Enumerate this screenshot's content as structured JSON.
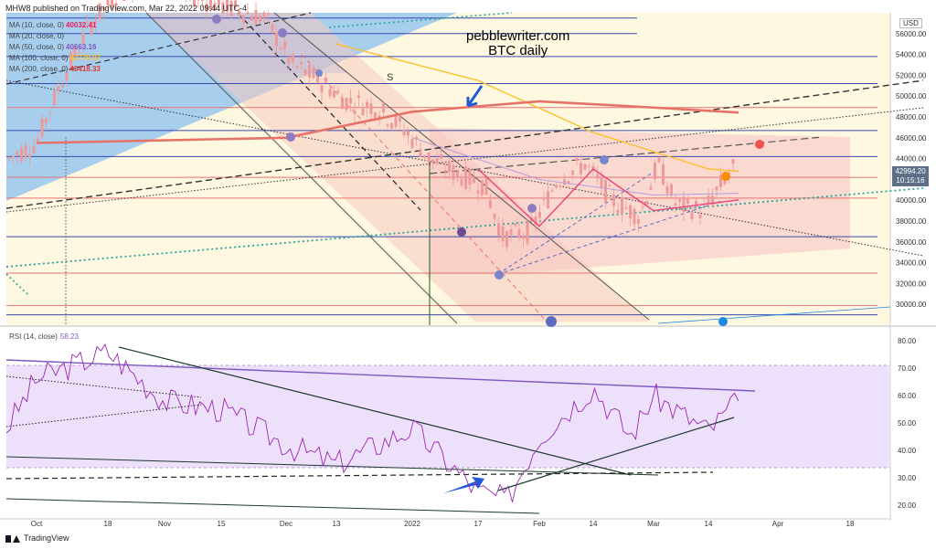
{
  "header": {
    "published": "MHW8 published on TradingView.com, Mar 22, 2022 09:44 UTC-4"
  },
  "footer": {
    "brand": "TradingView"
  },
  "watermark": {
    "line1": "pebblewriter.com",
    "line2": "BTC daily"
  },
  "currency": "USD",
  "price_box": {
    "price": "42994.20",
    "countdown": "10:15:16"
  },
  "ma_legend": [
    {
      "label": "MA (10, close, 0)",
      "value": "40032.41",
      "color": "#e91e63"
    },
    {
      "label": "MA (20, close, 0)",
      "value": "",
      "color": "#9e9e9e"
    },
    {
      "label": "MA (50, close, 0)",
      "value": "40663.16",
      "color": "#7e57c2"
    },
    {
      "label": "MA (100, close, 0)",
      "value": "42778.97",
      "color": "#fbc02d"
    },
    {
      "label": "MA (200, close, 0)",
      "value": "48418.33",
      "color": "#e53935"
    }
  ],
  "rsi_legend": {
    "label": "RSI (14, close)",
    "value": "58.23"
  },
  "colors": {
    "candle": "#ef9a9a",
    "rsi_line": "#9c27b0",
    "rsi_band": "#ede0fb",
    "channel_fill": "#f8d7d0",
    "blue_zone": "#90caf9",
    "sand": "#fff8e1"
  },
  "chart_data": [
    {
      "type": "line",
      "title": "BTC daily",
      "ylabel": "USD",
      "ylim": [
        28000,
        58000
      ],
      "yticks": [
        "56000.00",
        "54000.00",
        "52000.00",
        "50000.00",
        "48000.00",
        "46000.00",
        "44000.00",
        "42000.00",
        "40000.00",
        "38000.00",
        "36000.00",
        "34000.00",
        "32000.00",
        "30000.00"
      ],
      "xticks": [
        "Oct",
        "18",
        "Nov",
        "15",
        "Dec",
        "13",
        "2022",
        "17",
        "Feb",
        "14",
        "Mar",
        "14",
        "Apr",
        "18"
      ],
      "last_price": 42994.2,
      "annotations": [
        "S"
      ],
      "series": [
        {
          "name": "MA (100, close, 0)",
          "x": [
            "Dec 13",
            "Jan 17",
            "Feb 14",
            "Mar 14",
            "Mar 22"
          ],
          "values": [
            55000,
            51500,
            46500,
            43000,
            42779
          ]
        },
        {
          "name": "MA (200, close, 0)",
          "x": [
            "Oct",
            "Dec",
            "2022",
            "Feb",
            "Mar",
            "Mar 22"
          ],
          "values": [
            45500,
            46000,
            48500,
            49500,
            48900,
            48418
          ]
        },
        {
          "name": "MA (50, close, 0)",
          "x": [
            "2022",
            "Feb",
            "Mar",
            "Mar 22"
          ],
          "values": [
            46000,
            42000,
            40500,
            40663
          ]
        },
        {
          "name": "MA (10, close, 0)",
          "x": [
            "Jan 17",
            "Feb",
            "Feb 14",
            "Mar",
            "Mar 22"
          ],
          "values": [
            43000,
            37500,
            43000,
            39000,
            40032
          ]
        }
      ],
      "horizontal_levels": [
        57500,
        56000,
        53800,
        51200,
        48900,
        46700,
        44200,
        42200,
        40200,
        36500,
        33000,
        29900,
        29000
      ]
    },
    {
      "type": "line",
      "title": "RSI (14, close)",
      "ylim": [
        15,
        85
      ],
      "yticks": [
        "80.00",
        "70.00",
        "60.00",
        "50.00",
        "40.00",
        "30.00",
        "20.00"
      ],
      "band": [
        30,
        70
      ],
      "last_value": 58.23,
      "series": [
        {
          "name": "RSI (14, close)",
          "x": [
            "Sep 25",
            "Oct",
            "Oct 18",
            "Nov",
            "Nov 15",
            "Dec",
            "Dec 13",
            "2022",
            "Jan 17",
            "Jan 24",
            "Feb",
            "Feb 14",
            "Feb 21",
            "Mar",
            "Mar 14",
            "Mar 22"
          ],
          "values": [
            48,
            66,
            76,
            58,
            55,
            42,
            35,
            48,
            25,
            22,
            45,
            63,
            45,
            60,
            47,
            58
          ]
        }
      ]
    }
  ]
}
